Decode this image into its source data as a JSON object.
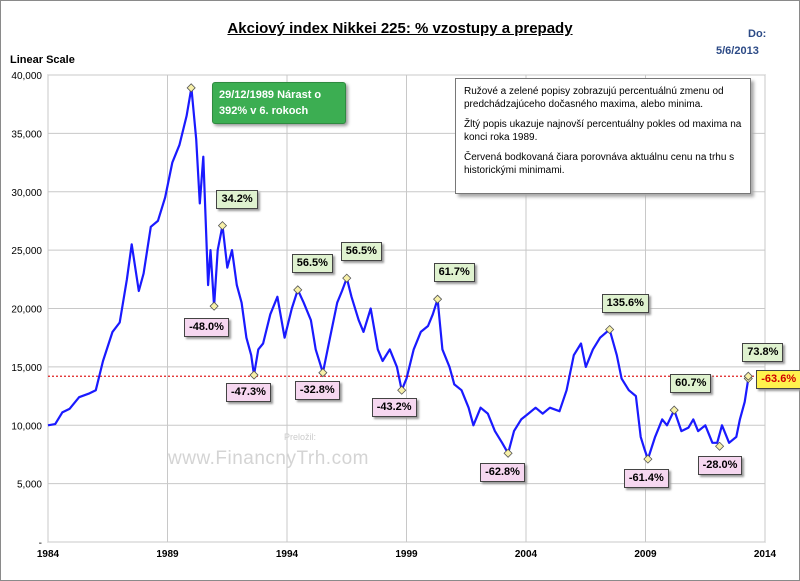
{
  "header": {
    "title": "Akciový index Nikkei 225: % vzostupy a prepady",
    "date_label": "Do:",
    "date_value": "5/6/2013",
    "scale_label": "Linear Scale"
  },
  "note": {
    "paragraphs": [
      "Ružové a zelené popisy zobrazujú percentuálnú zmenu od predchádzajúceho dočasného maxima, alebo minima.",
      "Žltý popis ukazuje najnovší percentuálny pokles od maxima na konci roka 1989.",
      "Červená bodkovaná čiara porovnáva aktuálnu cenu na trhu s historickými minimami."
    ]
  },
  "peak_callout": {
    "line1": "29/12/1989 Nárast o",
    "line2": "392% v 6. rokoch"
  },
  "watermark": {
    "label": "Preložil:",
    "text": "www.FinancnyTrh.com"
  },
  "colors": {
    "series": "#1a1aff",
    "reference_line": "#e02020",
    "grid": "#c8c8c8"
  },
  "chart_data": {
    "type": "line",
    "title": "Akciový index Nikkei 225: % vzostupy a prepady",
    "ylabel": "Linear Scale",
    "x_ticks": [
      1984,
      1989,
      1994,
      1999,
      2004,
      2009,
      2014
    ],
    "y_ticks": [
      0,
      5000,
      10000,
      15000,
      20000,
      25000,
      30000,
      35000,
      40000
    ],
    "y_tick_labels": [
      "-",
      "5,000",
      "10,000",
      "15,000",
      "20,000",
      "25,000",
      "30,000",
      "35,000",
      "40,000"
    ],
    "xlim": [
      1984,
      2014
    ],
    "ylim": [
      0,
      40000
    ],
    "grid": true,
    "reference_line": 14200,
    "series": [
      {
        "points": [
          [
            1984.0,
            10000
          ],
          [
            1984.3,
            10100
          ],
          [
            1984.6,
            11100
          ],
          [
            1984.9,
            11400
          ],
          [
            1985.3,
            12400
          ],
          [
            1985.7,
            12700
          ],
          [
            1986.0,
            13000
          ],
          [
            1986.3,
            15500
          ],
          [
            1986.7,
            18000
          ],
          [
            1987.0,
            18800
          ],
          [
            1987.3,
            22500
          ],
          [
            1987.5,
            25500
          ],
          [
            1987.8,
            21500
          ],
          [
            1988.0,
            23000
          ],
          [
            1988.3,
            27000
          ],
          [
            1988.6,
            27500
          ],
          [
            1988.9,
            29500
          ],
          [
            1989.2,
            32500
          ],
          [
            1989.5,
            34000
          ],
          [
            1989.8,
            36500
          ],
          [
            1990.0,
            38900
          ],
          [
            1990.2,
            34500
          ],
          [
            1990.35,
            29000
          ],
          [
            1990.5,
            33000
          ],
          [
            1990.7,
            22000
          ],
          [
            1990.8,
            25000
          ],
          [
            1990.95,
            20200
          ],
          [
            1991.1,
            25000
          ],
          [
            1991.3,
            27100
          ],
          [
            1991.5,
            23500
          ],
          [
            1991.7,
            25000
          ],
          [
            1991.9,
            22000
          ],
          [
            1992.1,
            20500
          ],
          [
            1992.3,
            17500
          ],
          [
            1992.5,
            16000
          ],
          [
            1992.62,
            14300
          ],
          [
            1992.8,
            16500
          ],
          [
            1993.0,
            17000
          ],
          [
            1993.3,
            19500
          ],
          [
            1993.6,
            21000
          ],
          [
            1993.9,
            17500
          ],
          [
            1994.2,
            20000
          ],
          [
            1994.45,
            21600
          ],
          [
            1994.7,
            20500
          ],
          [
            1995.0,
            19000
          ],
          [
            1995.2,
            16500
          ],
          [
            1995.5,
            14500
          ],
          [
            1995.8,
            17500
          ],
          [
            1996.1,
            20500
          ],
          [
            1996.3,
            21500
          ],
          [
            1996.5,
            22600
          ],
          [
            1996.7,
            21000
          ],
          [
            1997.0,
            19000
          ],
          [
            1997.2,
            18000
          ],
          [
            1997.5,
            20000
          ],
          [
            1997.8,
            16500
          ],
          [
            1998.0,
            15500
          ],
          [
            1998.3,
            16500
          ],
          [
            1998.6,
            15000
          ],
          [
            1998.8,
            13000
          ],
          [
            1999.0,
            14000
          ],
          [
            1999.3,
            16500
          ],
          [
            1999.6,
            18000
          ],
          [
            1999.9,
            18500
          ],
          [
            2000.1,
            19500
          ],
          [
            2000.3,
            20800
          ],
          [
            2000.5,
            16500
          ],
          [
            2000.8,
            15000
          ],
          [
            2001.0,
            13500
          ],
          [
            2001.3,
            13000
          ],
          [
            2001.6,
            11500
          ],
          [
            2001.8,
            10000
          ],
          [
            2002.1,
            11500
          ],
          [
            2002.4,
            11000
          ],
          [
            2002.7,
            9500
          ],
          [
            2003.0,
            8500
          ],
          [
            2003.25,
            7600
          ],
          [
            2003.5,
            9500
          ],
          [
            2003.8,
            10500
          ],
          [
            2004.1,
            11000
          ],
          [
            2004.4,
            11500
          ],
          [
            2004.7,
            11000
          ],
          [
            2005.0,
            11500
          ],
          [
            2005.4,
            11200
          ],
          [
            2005.7,
            13000
          ],
          [
            2006.0,
            16000
          ],
          [
            2006.3,
            17000
          ],
          [
            2006.5,
            15000
          ],
          [
            2006.8,
            16500
          ],
          [
            2007.1,
            17500
          ],
          [
            2007.5,
            18200
          ],
          [
            2007.8,
            16000
          ],
          [
            2008.0,
            14000
          ],
          [
            2008.3,
            13000
          ],
          [
            2008.6,
            12500
          ],
          [
            2008.8,
            9000
          ],
          [
            2008.95,
            8000
          ],
          [
            2009.1,
            7100
          ],
          [
            2009.4,
            9000
          ],
          [
            2009.7,
            10500
          ],
          [
            2009.9,
            10000
          ],
          [
            2010.2,
            11300
          ],
          [
            2010.5,
            9500
          ],
          [
            2010.8,
            9800
          ],
          [
            2011.0,
            10500
          ],
          [
            2011.2,
            9500
          ],
          [
            2011.5,
            10000
          ],
          [
            2011.8,
            8500
          ],
          [
            2012.0,
            8500
          ],
          [
            2012.2,
            10000
          ],
          [
            2012.5,
            8500
          ],
          [
            2012.8,
            9000
          ],
          [
            2012.95,
            10500
          ],
          [
            2013.15,
            12000
          ],
          [
            2013.3,
            14000
          ]
        ]
      }
    ],
    "annotations": [
      {
        "x": 1989.99,
        "y": 38900,
        "text": "29/12/1989 Nárast o 392% v 6. rokoch",
        "kind": "peak"
      },
      {
        "x": 1990.95,
        "y": 20200,
        "text": "-48.0%",
        "kind": "pink"
      },
      {
        "x": 1991.3,
        "y": 27100,
        "text": "34.2%",
        "kind": "green"
      },
      {
        "x": 1992.62,
        "y": 14300,
        "text": "-47.3%",
        "kind": "pink"
      },
      {
        "x": 1994.45,
        "y": 21600,
        "text": "56.5%",
        "kind": "green"
      },
      {
        "x": 1995.5,
        "y": 14500,
        "text": "-32.8%",
        "kind": "pink"
      },
      {
        "x": 1996.5,
        "y": 22600,
        "text": "56.5%",
        "kind": "green"
      },
      {
        "x": 1998.8,
        "y": 13000,
        "text": "-43.2%",
        "kind": "pink"
      },
      {
        "x": 2000.3,
        "y": 20800,
        "text": "61.7%",
        "kind": "green"
      },
      {
        "x": 2003.25,
        "y": 7600,
        "text": "-62.8%",
        "kind": "pink"
      },
      {
        "x": 2007.5,
        "y": 18200,
        "text": "135.6%",
        "kind": "green"
      },
      {
        "x": 2009.1,
        "y": 7100,
        "text": "-61.4%",
        "kind": "pink"
      },
      {
        "x": 2010.2,
        "y": 11300,
        "text": "60.7%",
        "kind": "green"
      },
      {
        "x": 2012.1,
        "y": 8200,
        "text": "-28.0%",
        "kind": "pink"
      },
      {
        "x": 2013.3,
        "y": 14000,
        "text": "73.8%",
        "kind": "green"
      },
      {
        "x": 2013.3,
        "y": 14200,
        "text": "-63.6%",
        "kind": "red"
      }
    ]
  }
}
